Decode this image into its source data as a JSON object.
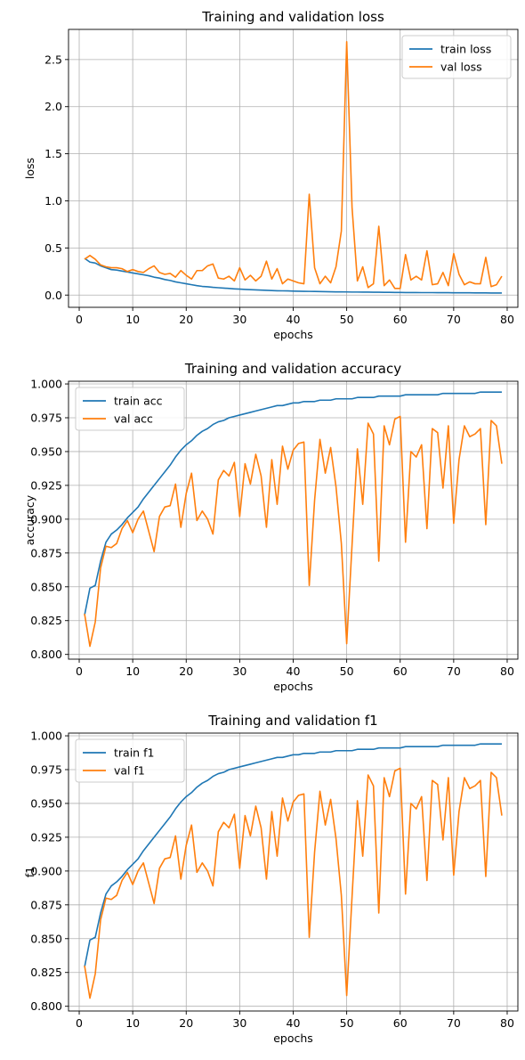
{
  "chart_data": [
    {
      "type": "line",
      "title": "Training and validation loss",
      "xlabel": "epochs",
      "ylabel": "loss",
      "xlim": [
        -2,
        82
      ],
      "ylim": [
        -0.13,
        2.82
      ],
      "xticks": [
        0,
        10,
        20,
        30,
        40,
        50,
        60,
        70,
        80
      ],
      "yticks": [
        0.0,
        0.5,
        1.0,
        1.5,
        2.0,
        2.5
      ],
      "ytick_labels": [
        "0.0",
        "0.5",
        "1.0",
        "1.5",
        "2.0",
        "2.5"
      ],
      "grid": true,
      "legend_position": "top-right",
      "x": [
        1,
        2,
        3,
        4,
        5,
        6,
        7,
        8,
        9,
        10,
        11,
        12,
        13,
        14,
        15,
        16,
        17,
        18,
        19,
        20,
        21,
        22,
        23,
        24,
        25,
        26,
        27,
        28,
        29,
        30,
        31,
        32,
        33,
        34,
        35,
        36,
        37,
        38,
        39,
        40,
        41,
        42,
        43,
        44,
        45,
        46,
        47,
        48,
        49,
        50,
        51,
        52,
        53,
        54,
        55,
        56,
        57,
        58,
        59,
        60,
        61,
        62,
        63,
        64,
        65,
        66,
        67,
        68,
        69,
        70,
        71,
        72,
        73,
        74,
        75,
        76,
        77,
        78,
        79
      ],
      "series": [
        {
          "name": "train loss",
          "color": "#1f77b4",
          "values": [
            0.39,
            0.35,
            0.34,
            0.31,
            0.29,
            0.27,
            0.265,
            0.255,
            0.245,
            0.235,
            0.225,
            0.215,
            0.205,
            0.19,
            0.18,
            0.165,
            0.155,
            0.14,
            0.13,
            0.12,
            0.11,
            0.1,
            0.092,
            0.088,
            0.082,
            0.078,
            0.074,
            0.07,
            0.066,
            0.063,
            0.06,
            0.057,
            0.055,
            0.053,
            0.05,
            0.048,
            0.046,
            0.045,
            0.044,
            0.042,
            0.041,
            0.04,
            0.039,
            0.038,
            0.037,
            0.036,
            0.035,
            0.034,
            0.034,
            0.033,
            0.032,
            0.032,
            0.031,
            0.031,
            0.03,
            0.03,
            0.029,
            0.029,
            0.028,
            0.028,
            0.027,
            0.027,
            0.027,
            0.026,
            0.026,
            0.026,
            0.025,
            0.025,
            0.025,
            0.024,
            0.024,
            0.024,
            0.024,
            0.023,
            0.023,
            0.023,
            0.022,
            0.022,
            0.022
          ]
        },
        {
          "name": "val loss",
          "color": "#ff7f0e",
          "values": [
            0.38,
            0.42,
            0.38,
            0.32,
            0.3,
            0.29,
            0.29,
            0.28,
            0.25,
            0.27,
            0.25,
            0.24,
            0.28,
            0.31,
            0.24,
            0.22,
            0.23,
            0.19,
            0.26,
            0.21,
            0.17,
            0.26,
            0.26,
            0.31,
            0.33,
            0.18,
            0.17,
            0.2,
            0.15,
            0.29,
            0.16,
            0.21,
            0.15,
            0.2,
            0.36,
            0.17,
            0.28,
            0.12,
            0.17,
            0.15,
            0.13,
            0.12,
            1.07,
            0.29,
            0.12,
            0.2,
            0.13,
            0.3,
            0.68,
            2.69,
            0.93,
            0.15,
            0.3,
            0.08,
            0.12,
            0.73,
            0.1,
            0.16,
            0.07,
            0.07,
            0.43,
            0.16,
            0.2,
            0.16,
            0.47,
            0.11,
            0.12,
            0.24,
            0.1,
            0.44,
            0.22,
            0.11,
            0.14,
            0.12,
            0.12,
            0.4,
            0.09,
            0.11,
            0.2
          ]
        }
      ]
    },
    {
      "type": "line",
      "title": "Training and validation accuracy",
      "xlabel": "epochs",
      "ylabel": "accuracy",
      "xlim": [
        -2,
        82
      ],
      "ylim": [
        0.7965,
        1.002
      ],
      "xticks": [
        0,
        10,
        20,
        30,
        40,
        50,
        60,
        70,
        80
      ],
      "yticks": [
        0.8,
        0.825,
        0.85,
        0.875,
        0.9,
        0.925,
        0.95,
        0.975,
        1.0
      ],
      "ytick_labels": [
        "0.800",
        "0.825",
        "0.850",
        "0.875",
        "0.900",
        "0.925",
        "0.950",
        "0.975",
        "1.000"
      ],
      "grid": true,
      "legend_position": "top-left",
      "x": [
        1,
        2,
        3,
        4,
        5,
        6,
        7,
        8,
        9,
        10,
        11,
        12,
        13,
        14,
        15,
        16,
        17,
        18,
        19,
        20,
        21,
        22,
        23,
        24,
        25,
        26,
        27,
        28,
        29,
        30,
        31,
        32,
        33,
        34,
        35,
        36,
        37,
        38,
        39,
        40,
        41,
        42,
        43,
        44,
        45,
        46,
        47,
        48,
        49,
        50,
        51,
        52,
        53,
        54,
        55,
        56,
        57,
        58,
        59,
        60,
        61,
        62,
        63,
        64,
        65,
        66,
        67,
        68,
        69,
        70,
        71,
        72,
        73,
        74,
        75,
        76,
        77,
        78,
        79
      ],
      "series": [
        {
          "name": "train acc",
          "color": "#1f77b4",
          "values": [
            0.829,
            0.849,
            0.851,
            0.869,
            0.883,
            0.889,
            0.892,
            0.896,
            0.901,
            0.905,
            0.909,
            0.915,
            0.92,
            0.925,
            0.93,
            0.935,
            0.94,
            0.946,
            0.951,
            0.955,
            0.958,
            0.962,
            0.965,
            0.967,
            0.97,
            0.972,
            0.973,
            0.975,
            0.976,
            0.977,
            0.978,
            0.979,
            0.98,
            0.981,
            0.982,
            0.983,
            0.984,
            0.984,
            0.985,
            0.986,
            0.986,
            0.987,
            0.987,
            0.987,
            0.988,
            0.988,
            0.988,
            0.989,
            0.989,
            0.989,
            0.989,
            0.99,
            0.99,
            0.99,
            0.99,
            0.991,
            0.991,
            0.991,
            0.991,
            0.991,
            0.992,
            0.992,
            0.992,
            0.992,
            0.992,
            0.992,
            0.992,
            0.993,
            0.993,
            0.993,
            0.993,
            0.993,
            0.993,
            0.993,
            0.994,
            0.994,
            0.994,
            0.994,
            0.994
          ]
        },
        {
          "name": "val acc",
          "color": "#ff7f0e",
          "values": [
            0.83,
            0.806,
            0.824,
            0.864,
            0.88,
            0.879,
            0.882,
            0.893,
            0.899,
            0.89,
            0.9,
            0.906,
            0.891,
            0.876,
            0.902,
            0.909,
            0.91,
            0.926,
            0.894,
            0.919,
            0.934,
            0.899,
            0.906,
            0.9,
            0.889,
            0.929,
            0.936,
            0.932,
            0.942,
            0.902,
            0.941,
            0.926,
            0.948,
            0.932,
            0.894,
            0.944,
            0.911,
            0.954,
            0.937,
            0.951,
            0.956,
            0.957,
            0.851,
            0.914,
            0.959,
            0.934,
            0.953,
            0.924,
            0.882,
            0.808,
            0.881,
            0.952,
            0.911,
            0.971,
            0.963,
            0.869,
            0.969,
            0.955,
            0.974,
            0.976,
            0.883,
            0.95,
            0.946,
            0.955,
            0.893,
            0.967,
            0.964,
            0.923,
            0.969,
            0.897,
            0.944,
            0.969,
            0.961,
            0.963,
            0.967,
            0.896,
            0.973,
            0.969,
            0.941
          ]
        }
      ]
    },
    {
      "type": "line",
      "title": "Training and validation f1",
      "xlabel": "epochs",
      "ylabel": "f1",
      "xlim": [
        -2,
        82
      ],
      "ylim": [
        0.7965,
        1.002
      ],
      "xticks": [
        0,
        10,
        20,
        30,
        40,
        50,
        60,
        70,
        80
      ],
      "yticks": [
        0.8,
        0.825,
        0.85,
        0.875,
        0.9,
        0.925,
        0.95,
        0.975,
        1.0
      ],
      "ytick_labels": [
        "0.800",
        "0.825",
        "0.850",
        "0.875",
        "0.900",
        "0.925",
        "0.950",
        "0.975",
        "1.000"
      ],
      "grid": true,
      "legend_position": "top-left",
      "x": [
        1,
        2,
        3,
        4,
        5,
        6,
        7,
        8,
        9,
        10,
        11,
        12,
        13,
        14,
        15,
        16,
        17,
        18,
        19,
        20,
        21,
        22,
        23,
        24,
        25,
        26,
        27,
        28,
        29,
        30,
        31,
        32,
        33,
        34,
        35,
        36,
        37,
        38,
        39,
        40,
        41,
        42,
        43,
        44,
        45,
        46,
        47,
        48,
        49,
        50,
        51,
        52,
        53,
        54,
        55,
        56,
        57,
        58,
        59,
        60,
        61,
        62,
        63,
        64,
        65,
        66,
        67,
        68,
        69,
        70,
        71,
        72,
        73,
        74,
        75,
        76,
        77,
        78,
        79
      ],
      "series": [
        {
          "name": "train f1",
          "color": "#1f77b4",
          "values": [
            0.829,
            0.849,
            0.851,
            0.869,
            0.883,
            0.889,
            0.892,
            0.896,
            0.901,
            0.905,
            0.909,
            0.915,
            0.92,
            0.925,
            0.93,
            0.935,
            0.94,
            0.946,
            0.951,
            0.955,
            0.958,
            0.962,
            0.965,
            0.967,
            0.97,
            0.972,
            0.973,
            0.975,
            0.976,
            0.977,
            0.978,
            0.979,
            0.98,
            0.981,
            0.982,
            0.983,
            0.984,
            0.984,
            0.985,
            0.986,
            0.986,
            0.987,
            0.987,
            0.987,
            0.988,
            0.988,
            0.988,
            0.989,
            0.989,
            0.989,
            0.989,
            0.99,
            0.99,
            0.99,
            0.99,
            0.991,
            0.991,
            0.991,
            0.991,
            0.991,
            0.992,
            0.992,
            0.992,
            0.992,
            0.992,
            0.992,
            0.992,
            0.993,
            0.993,
            0.993,
            0.993,
            0.993,
            0.993,
            0.993,
            0.994,
            0.994,
            0.994,
            0.994,
            0.994
          ]
        },
        {
          "name": "val f1",
          "color": "#ff7f0e",
          "values": [
            0.83,
            0.806,
            0.824,
            0.864,
            0.88,
            0.879,
            0.882,
            0.893,
            0.899,
            0.89,
            0.9,
            0.906,
            0.891,
            0.876,
            0.902,
            0.909,
            0.91,
            0.926,
            0.894,
            0.919,
            0.934,
            0.899,
            0.906,
            0.9,
            0.889,
            0.929,
            0.936,
            0.932,
            0.942,
            0.902,
            0.941,
            0.926,
            0.948,
            0.932,
            0.894,
            0.944,
            0.911,
            0.954,
            0.937,
            0.951,
            0.956,
            0.957,
            0.851,
            0.914,
            0.959,
            0.934,
            0.953,
            0.924,
            0.882,
            0.808,
            0.881,
            0.952,
            0.911,
            0.971,
            0.963,
            0.869,
            0.969,
            0.955,
            0.974,
            0.976,
            0.883,
            0.95,
            0.946,
            0.955,
            0.893,
            0.967,
            0.964,
            0.923,
            0.969,
            0.897,
            0.944,
            0.969,
            0.961,
            0.963,
            0.967,
            0.896,
            0.973,
            0.969,
            0.941
          ]
        }
      ]
    }
  ]
}
